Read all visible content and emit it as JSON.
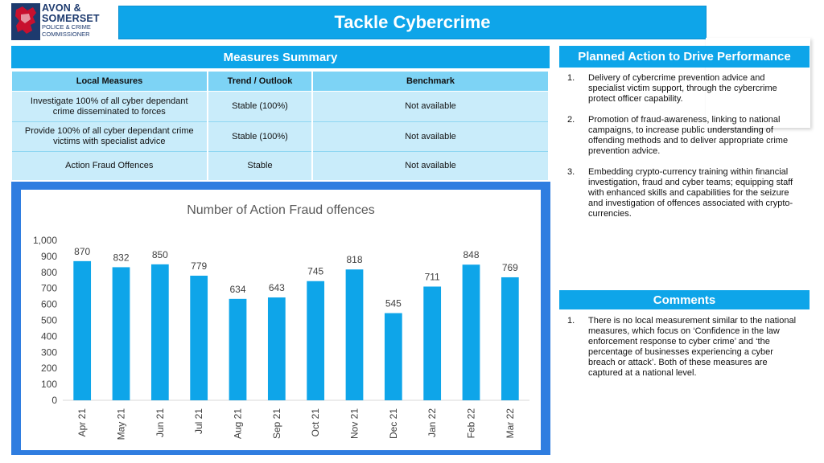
{
  "logo": {
    "line1": "AVON &",
    "line2": "SOMERSET",
    "line3": "POLICE & CRIME",
    "line4": "COMMISSIONER",
    "crest_colors": [
      "#c8102e",
      "#1d3a6e"
    ]
  },
  "title": "Tackle Cybercrime",
  "measures": {
    "header": "Measures Summary",
    "columns": [
      "Local Measures",
      "Trend / Outlook",
      "Benchmark"
    ],
    "rows": [
      {
        "measure": "Investigate 100% of all cyber dependant crime disseminated to forces",
        "trend": "Stable (100%)",
        "benchmark": "Not available"
      },
      {
        "measure": "Provide 100% of all cyber dependant crime victims with specialist advice",
        "trend": "Stable (100%)",
        "benchmark": "Not available"
      },
      {
        "measure": "Action Fraud Offences",
        "trend": "Stable",
        "benchmark": "Not available"
      }
    ]
  },
  "planned": {
    "header": "Planned Action to Drive Performance",
    "items": [
      {
        "num": "1.",
        "text": "Delivery of cybercrime prevention advice and specialist victim support, through the cybercrime protect officer capability."
      },
      {
        "num": "2.",
        "text": "Promotion of fraud-awareness, linking to national campaigns, to increase public understanding of offending methods and to deliver appropriate crime prevention advice."
      },
      {
        "num": "3.",
        "text": "Embedding crypto-currency training within financial investigation, fraud and cyber teams; equipping staff with enhanced skills and capabilities for the seizure and investigation of offences associated with crypto-currencies."
      }
    ]
  },
  "comments": {
    "header": "Comments",
    "items": [
      {
        "num": "1.",
        "text": "There is no local measurement similar to the national measures, which focus on ‘Confidence in the law enforcement response to cyber crime’ and ‘the percentage of businesses experiencing a cyber breach or attack’. Both of these measures are captured at a national level."
      }
    ]
  },
  "colors": {
    "accent": "#0ea5e9",
    "bar": "#0ea5e9",
    "frame": "#2f7de0"
  },
  "chart_data": {
    "type": "bar",
    "title": "Number of Action Fraud offences",
    "categories": [
      "Apr 21",
      "May 21",
      "Jun 21",
      "Jul 21",
      "Aug 21",
      "Sep 21",
      "Oct 21",
      "Nov 21",
      "Dec 21",
      "Jan 22",
      "Feb 22",
      "Mar 22"
    ],
    "values": [
      870,
      832,
      850,
      779,
      634,
      643,
      745,
      818,
      545,
      711,
      848,
      769
    ],
    "ylim": [
      0,
      1000
    ],
    "yticks": [
      "0",
      "100",
      "200",
      "300",
      "400",
      "500",
      "600",
      "700",
      "800",
      "900",
      "1,000"
    ],
    "grid": false,
    "data_labels": true
  }
}
